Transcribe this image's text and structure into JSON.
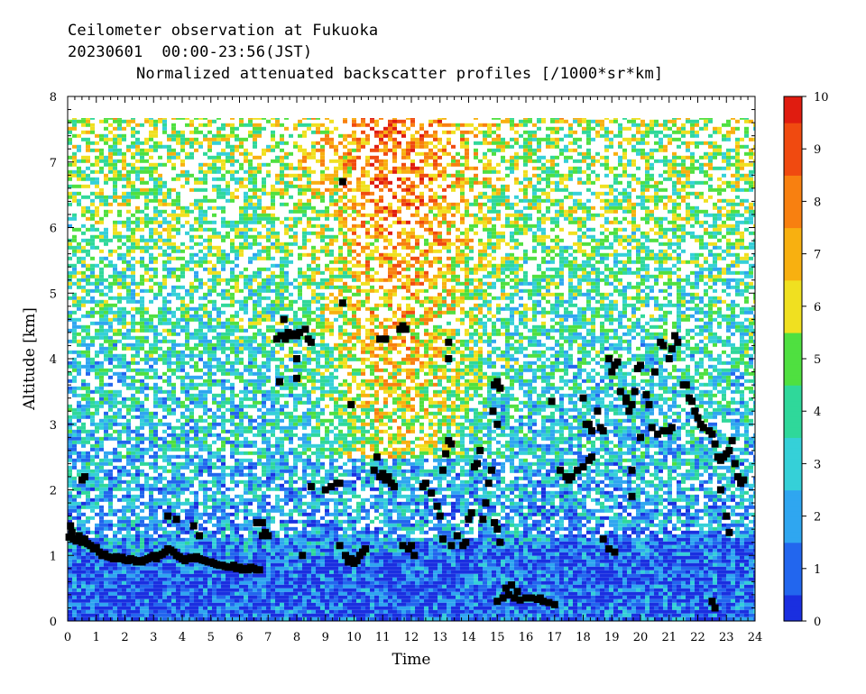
{
  "header": {
    "line1": "Ceilometer observation at Fukuoka",
    "line2": "20230601  00:00-23:56(JST)",
    "line3": "Normalized attenuated backscatter profiles [/1000*sr*km]"
  },
  "colorbar": {
    "tick_labels": [
      "0",
      "1",
      "2",
      "3",
      "4",
      "5",
      "6",
      "7",
      "8",
      "9",
      "10"
    ],
    "colors": [
      "#1a2fe0",
      "#2266ee",
      "#2fa6f0",
      "#35d0d8",
      "#2fd89a",
      "#4fe040",
      "#f0e020",
      "#f8b010",
      "#f88010",
      "#f04a10",
      "#e01c10"
    ]
  },
  "chart_data": {
    "type": "heatmap",
    "xlabel": "Time",
    "ylabel": "Altitude [km]",
    "xlim": [
      0,
      24
    ],
    "ylim": [
      0,
      8
    ],
    "x_tick_labels": [
      "0",
      "1",
      "2",
      "3",
      "4",
      "5",
      "6",
      "7",
      "8",
      "9",
      "10",
      "11",
      "12",
      "13",
      "14",
      "15",
      "16",
      "17",
      "18",
      "19",
      "20",
      "21",
      "22",
      "23",
      "24"
    ],
    "y_tick_labels": [
      "0",
      "1",
      "2",
      "3",
      "4",
      "5",
      "6",
      "7",
      "8"
    ],
    "colorbar_range": [
      0,
      10
    ],
    "max_altitude_data_km": 7.7,
    "cloud_base_markers": [
      [
        0.05,
        1.28
      ],
      [
        0.1,
        1.45
      ],
      [
        0.15,
        1.35
      ],
      [
        0.2,
        1.25
      ],
      [
        0.3,
        1.22
      ],
      [
        0.4,
        1.3
      ],
      [
        0.5,
        1.2
      ],
      [
        0.6,
        1.25
      ],
      [
        0.7,
        1.18
      ],
      [
        0.8,
        1.15
      ],
      [
        0.9,
        1.1
      ],
      [
        1.0,
        1.12
      ],
      [
        1.1,
        1.05
      ],
      [
        1.2,
        1.0
      ],
      [
        1.3,
        1.02
      ],
      [
        1.4,
        0.98
      ],
      [
        1.5,
        0.97
      ],
      [
        1.6,
        0.95
      ],
      [
        1.7,
        0.98
      ],
      [
        1.8,
        0.95
      ],
      [
        1.9,
        0.97
      ],
      [
        2.0,
        0.93
      ],
      [
        2.1,
        0.92
      ],
      [
        2.2,
        0.95
      ],
      [
        2.3,
        0.93
      ],
      [
        2.4,
        0.9
      ],
      [
        2.5,
        0.92
      ],
      [
        2.6,
        0.9
      ],
      [
        2.7,
        0.93
      ],
      [
        2.8,
        0.95
      ],
      [
        2.9,
        0.97
      ],
      [
        3.0,
        1.0
      ],
      [
        3.1,
        0.95
      ],
      [
        3.2,
        1.0
      ],
      [
        3.3,
        1.02
      ],
      [
        3.4,
        1.05
      ],
      [
        3.5,
        1.1
      ],
      [
        3.6,
        1.08
      ],
      [
        3.7,
        1.05
      ],
      [
        3.8,
        1.0
      ],
      [
        3.9,
        0.98
      ],
      [
        4.0,
        0.95
      ],
      [
        4.1,
        0.92
      ],
      [
        4.2,
        0.95
      ],
      [
        4.3,
        0.97
      ],
      [
        4.4,
        0.95
      ],
      [
        4.5,
        0.98
      ],
      [
        4.6,
        0.95
      ],
      [
        4.7,
        0.93
      ],
      [
        4.8,
        0.92
      ],
      [
        4.9,
        0.9
      ],
      [
        5.0,
        0.9
      ],
      [
        5.1,
        0.88
      ],
      [
        5.2,
        0.86
      ],
      [
        5.3,
        0.85
      ],
      [
        5.4,
        0.85
      ],
      [
        5.5,
        0.83
      ],
      [
        5.6,
        0.82
      ],
      [
        5.7,
        0.82
      ],
      [
        5.8,
        0.85
      ],
      [
        5.9,
        0.8
      ],
      [
        6.0,
        0.82
      ],
      [
        6.1,
        0.78
      ],
      [
        6.2,
        0.8
      ],
      [
        6.3,
        0.78
      ],
      [
        6.4,
        0.82
      ],
      [
        6.5,
        0.8
      ],
      [
        6.6,
        0.78
      ],
      [
        6.7,
        0.78
      ],
      [
        6.8,
        1.3
      ],
      [
        0.5,
        2.15
      ],
      [
        0.6,
        2.2
      ],
      [
        3.5,
        1.6
      ],
      [
        3.8,
        1.55
      ],
      [
        4.4,
        1.45
      ],
      [
        4.6,
        1.3
      ],
      [
        6.6,
        1.5
      ],
      [
        6.8,
        1.5
      ],
      [
        6.9,
        1.35
      ],
      [
        7.0,
        1.3
      ],
      [
        7.3,
        4.3
      ],
      [
        7.45,
        4.35
      ],
      [
        7.55,
        4.6
      ],
      [
        7.6,
        4.3
      ],
      [
        7.7,
        4.4
      ],
      [
        7.8,
        4.35
      ],
      [
        7.9,
        4.38
      ],
      [
        8.0,
        4.35
      ],
      [
        8.1,
        4.4
      ],
      [
        8.3,
        4.45
      ],
      [
        8.4,
        4.3
      ],
      [
        8.5,
        4.25
      ],
      [
        7.4,
        3.65
      ],
      [
        8.0,
        4.0
      ],
      [
        8.0,
        3.7
      ],
      [
        8.2,
        1.0
      ],
      [
        8.5,
        2.05
      ],
      [
        9.0,
        2.0
      ],
      [
        9.2,
        2.05
      ],
      [
        9.4,
        2.1
      ],
      [
        9.5,
        2.1
      ],
      [
        9.6,
        4.85
      ],
      [
        9.6,
        6.7
      ],
      [
        9.5,
        1.15
      ],
      [
        9.7,
        1.0
      ],
      [
        9.8,
        0.9
      ],
      [
        9.9,
        0.95
      ],
      [
        10.0,
        0.88
      ],
      [
        10.1,
        0.92
      ],
      [
        10.2,
        1.0
      ],
      [
        10.3,
        1.05
      ],
      [
        10.4,
        1.1
      ],
      [
        9.9,
        3.3
      ],
      [
        10.7,
        2.3
      ],
      [
        10.8,
        2.5
      ],
      [
        10.9,
        2.2
      ],
      [
        11.0,
        2.25
      ],
      [
        11.1,
        2.15
      ],
      [
        11.2,
        2.2
      ],
      [
        11.3,
        2.1
      ],
      [
        11.4,
        2.05
      ],
      [
        10.9,
        4.3
      ],
      [
        11.1,
        4.3
      ],
      [
        11.6,
        4.45
      ],
      [
        11.7,
        4.5
      ],
      [
        11.8,
        4.45
      ],
      [
        11.7,
        1.15
      ],
      [
        11.9,
        1.1
      ],
      [
        12.0,
        1.15
      ],
      [
        12.1,
        1.0
      ],
      [
        12.4,
        2.05
      ],
      [
        12.5,
        2.1
      ],
      [
        12.7,
        1.95
      ],
      [
        12.9,
        1.75
      ],
      [
        13.0,
        1.6
      ],
      [
        13.1,
        2.3
      ],
      [
        13.2,
        2.55
      ],
      [
        13.3,
        2.75
      ],
      [
        13.4,
        2.7
      ],
      [
        13.3,
        4.25
      ],
      [
        13.3,
        4.0
      ],
      [
        13.1,
        1.25
      ],
      [
        13.4,
        1.15
      ],
      [
        13.6,
        1.3
      ],
      [
        13.8,
        1.15
      ],
      [
        13.9,
        1.2
      ],
      [
        14.0,
        1.55
      ],
      [
        14.1,
        1.65
      ],
      [
        14.2,
        2.35
      ],
      [
        14.3,
        2.4
      ],
      [
        14.4,
        2.6
      ],
      [
        14.5,
        1.55
      ],
      [
        14.6,
        1.8
      ],
      [
        14.7,
        2.1
      ],
      [
        14.8,
        2.3
      ],
      [
        14.85,
        3.2
      ],
      [
        14.9,
        3.6
      ],
      [
        15.0,
        3.65
      ],
      [
        15.1,
        3.55
      ],
      [
        15.0,
        3.0
      ],
      [
        14.9,
        1.5
      ],
      [
        15.0,
        1.4
      ],
      [
        15.1,
        1.2
      ],
      [
        15.0,
        0.3
      ],
      [
        15.2,
        0.35
      ],
      [
        15.4,
        0.4
      ],
      [
        15.6,
        0.35
      ],
      [
        15.8,
        0.32
      ],
      [
        16.0,
        0.35
      ],
      [
        16.2,
        0.35
      ],
      [
        16.4,
        0.33
      ],
      [
        16.6,
        0.3
      ],
      [
        16.8,
        0.28
      ],
      [
        15.3,
        0.5
      ],
      [
        15.5,
        0.55
      ],
      [
        15.7,
        0.45
      ],
      [
        16.5,
        0.35
      ],
      [
        17.0,
        0.25
      ],
      [
        16.9,
        3.35
      ],
      [
        17.2,
        2.3
      ],
      [
        17.4,
        2.2
      ],
      [
        17.5,
        2.15
      ],
      [
        17.6,
        2.2
      ],
      [
        17.8,
        2.3
      ],
      [
        18.0,
        2.35
      ],
      [
        18.2,
        2.45
      ],
      [
        18.3,
        2.5
      ],
      [
        18.0,
        3.4
      ],
      [
        18.1,
        3.0
      ],
      [
        18.3,
        2.9
      ],
      [
        18.5,
        3.2
      ],
      [
        18.6,
        2.95
      ],
      [
        18.7,
        2.9
      ],
      [
        18.9,
        4.0
      ],
      [
        19.0,
        3.8
      ],
      [
        19.1,
        3.9
      ],
      [
        19.2,
        3.95
      ],
      [
        19.3,
        3.5
      ],
      [
        19.5,
        3.4
      ],
      [
        19.6,
        3.2
      ],
      [
        19.7,
        3.3
      ],
      [
        19.8,
        3.5
      ],
      [
        19.9,
        3.85
      ],
      [
        20.0,
        3.9
      ],
      [
        20.2,
        3.45
      ],
      [
        20.3,
        3.3
      ],
      [
        20.5,
        3.8
      ],
      [
        20.7,
        4.25
      ],
      [
        20.8,
        4.2
      ],
      [
        21.0,
        4.0
      ],
      [
        21.1,
        4.15
      ],
      [
        21.2,
        4.35
      ],
      [
        21.3,
        4.25
      ],
      [
        21.5,
        3.6
      ],
      [
        21.6,
        3.6
      ],
      [
        21.7,
        3.4
      ],
      [
        21.8,
        3.35
      ],
      [
        21.9,
        3.2
      ],
      [
        22.0,
        3.1
      ],
      [
        22.1,
        3.0
      ],
      [
        22.2,
        2.95
      ],
      [
        22.4,
        2.9
      ],
      [
        22.5,
        2.85
      ],
      [
        22.6,
        2.7
      ],
      [
        22.7,
        2.5
      ],
      [
        22.8,
        2.45
      ],
      [
        22.9,
        2.5
      ],
      [
        23.0,
        2.55
      ],
      [
        23.1,
        2.6
      ],
      [
        23.2,
        2.75
      ],
      [
        23.3,
        2.4
      ],
      [
        23.4,
        2.2
      ],
      [
        23.5,
        2.1
      ],
      [
        23.6,
        2.15
      ],
      [
        20.4,
        2.95
      ],
      [
        20.6,
        2.85
      ],
      [
        20.8,
        2.9
      ],
      [
        21.0,
        2.9
      ],
      [
        21.1,
        2.95
      ],
      [
        19.1,
        1.05
      ],
      [
        18.9,
        1.1
      ],
      [
        18.7,
        1.25
      ],
      [
        19.7,
        1.9
      ],
      [
        19.7,
        2.3
      ],
      [
        22.5,
        0.3
      ],
      [
        22.6,
        0.2
      ],
      [
        22.8,
        2.0
      ],
      [
        23.0,
        1.6
      ],
      [
        23.1,
        1.35
      ],
      [
        20.0,
        2.8
      ],
      [
        19.5,
        3.35
      ],
      [
        18.2,
        3.0
      ]
    ]
  }
}
